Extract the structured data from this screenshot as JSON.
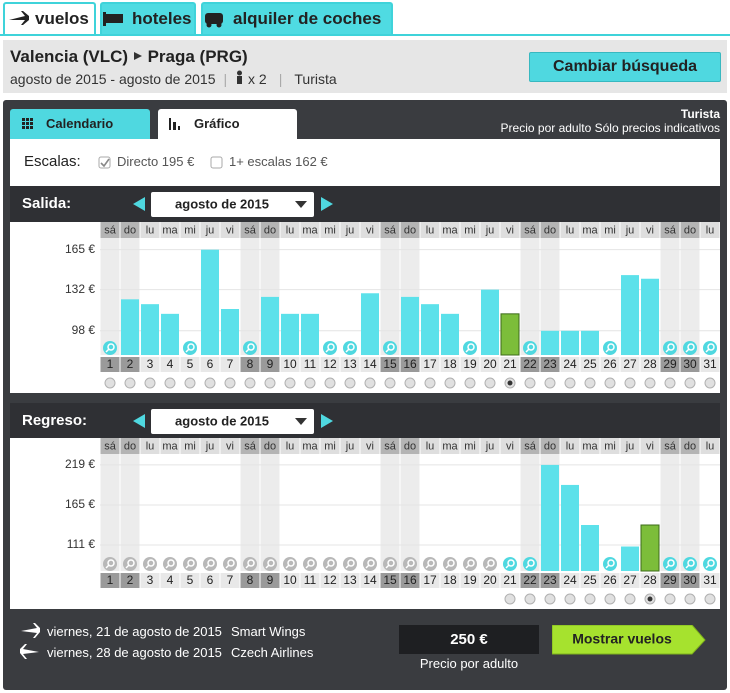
{
  "tabs": [
    "vuelos",
    "hoteles",
    "alquiler de coches"
  ],
  "search": {
    "from": "Valencia (VLC)",
    "to": "Praga (PRG)",
    "dates": "agosto de 2015 - agosto de 2015",
    "passengers": "x 2",
    "cabin": "Turista",
    "button": "Cambiar búsqueda"
  },
  "view_tabs": [
    "Calendario",
    "Gráfico"
  ],
  "cabin_note": "Turista",
  "price_note": "Precio por adulto Sólo precios indicativos",
  "stops": {
    "label": "Escalas:",
    "options": [
      {
        "label": "Directo 195 €",
        "checked": true
      },
      {
        "label": "1+ escalas 162 €",
        "checked": false
      }
    ]
  },
  "weekdays": [
    "sá",
    "do",
    "lu",
    "ma",
    "mi",
    "ju",
    "vi",
    "sá",
    "do",
    "lu",
    "ma",
    "mi",
    "ju",
    "vi",
    "sá",
    "do",
    "lu",
    "ma",
    "mi",
    "ju",
    "vi",
    "sá",
    "do",
    "lu",
    "ma",
    "mi",
    "ju",
    "vi",
    "sá",
    "do",
    "lu"
  ],
  "days": [
    "1",
    "2",
    "3",
    "4",
    "5",
    "6",
    "7",
    "8",
    "9",
    "10",
    "11",
    "12",
    "13",
    "14",
    "15",
    "16",
    "17",
    "18",
    "19",
    "20",
    "21",
    "22",
    "23",
    "24",
    "25",
    "26",
    "27",
    "28",
    "29",
    "30",
    "31"
  ],
  "charts": [
    {
      "label": "Salida:",
      "month": "agosto de 2015",
      "ylim": [
        78,
        173
      ],
      "yticks": [
        {
          "value": 165,
          "label": "165 €"
        },
        {
          "value": 132,
          "label": "132 €"
        },
        {
          "value": 98,
          "label": "98 €"
        }
      ],
      "values": [
        null,
        124,
        120,
        112,
        null,
        165,
        116,
        null,
        126,
        112,
        112,
        null,
        null,
        129,
        null,
        126,
        120,
        112,
        null,
        132,
        112,
        null,
        98,
        98,
        98,
        null,
        144,
        141,
        null,
        null,
        null
      ],
      "selected": 20,
      "selectable_from": 0
    },
    {
      "label": "Regreso:",
      "month": "agosto de 2015",
      "ylim": [
        76,
        231
      ],
      "yticks": [
        {
          "value": 219,
          "label": "219 €"
        },
        {
          "value": 165,
          "label": "165 €"
        },
        {
          "value": 111,
          "label": "111 €"
        }
      ],
      "values": [
        null,
        null,
        null,
        null,
        null,
        null,
        null,
        null,
        null,
        null,
        null,
        null,
        null,
        null,
        null,
        null,
        null,
        null,
        null,
        null,
        null,
        null,
        219,
        192,
        138,
        null,
        109,
        138,
        null,
        null,
        null
      ],
      "selected": 27,
      "selectable_from": 20
    }
  ],
  "itinerary": [
    {
      "date": "viernes, 21 de agosto de 2015",
      "airline": "Smart Wings"
    },
    {
      "date": "viernes, 28 de agosto de 2015",
      "airline": "Czech Airlines"
    }
  ],
  "price": "250 €",
  "price_caption": "Precio por adulto",
  "show_button": "Mostrar vuelos"
}
